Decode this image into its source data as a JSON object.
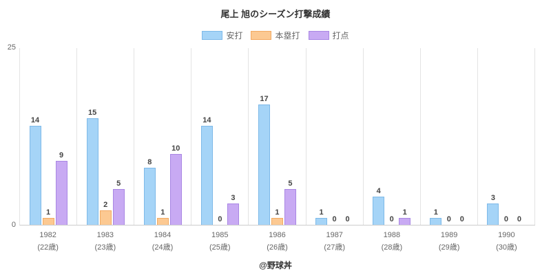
{
  "chart_data": {
    "type": "bar",
    "title": "尾上 旭のシーズン打撃成績",
    "categories": [
      "1982",
      "1983",
      "1984",
      "1985",
      "1986",
      "1987",
      "1988",
      "1989",
      "1990"
    ],
    "category_sublabels": [
      "(22歳)",
      "(23歳)",
      "(24歳)",
      "(25歳)",
      "(26歳)",
      "(27歳)",
      "(28歳)",
      "(29歳)",
      "(30歳)"
    ],
    "series": [
      {
        "name": "安打",
        "color": "#a5d4f7",
        "border": "#7db9e8",
        "values": [
          14,
          15,
          8,
          14,
          17,
          1,
          4,
          1,
          3
        ]
      },
      {
        "name": "本塁打",
        "color": "#fcc992",
        "border": "#f2a961",
        "values": [
          1,
          2,
          1,
          0,
          1,
          0,
          0,
          0,
          0
        ]
      },
      {
        "name": "打点",
        "color": "#c8aaf3",
        "border": "#a886e3",
        "values": [
          9,
          5,
          10,
          3,
          5,
          0,
          1,
          0,
          0
        ]
      }
    ],
    "ylim": [
      0,
      25
    ],
    "yticks": [
      0,
      25
    ],
    "legend_position": "top",
    "grid": "vertical-separators"
  },
  "footer": "@野球丼"
}
